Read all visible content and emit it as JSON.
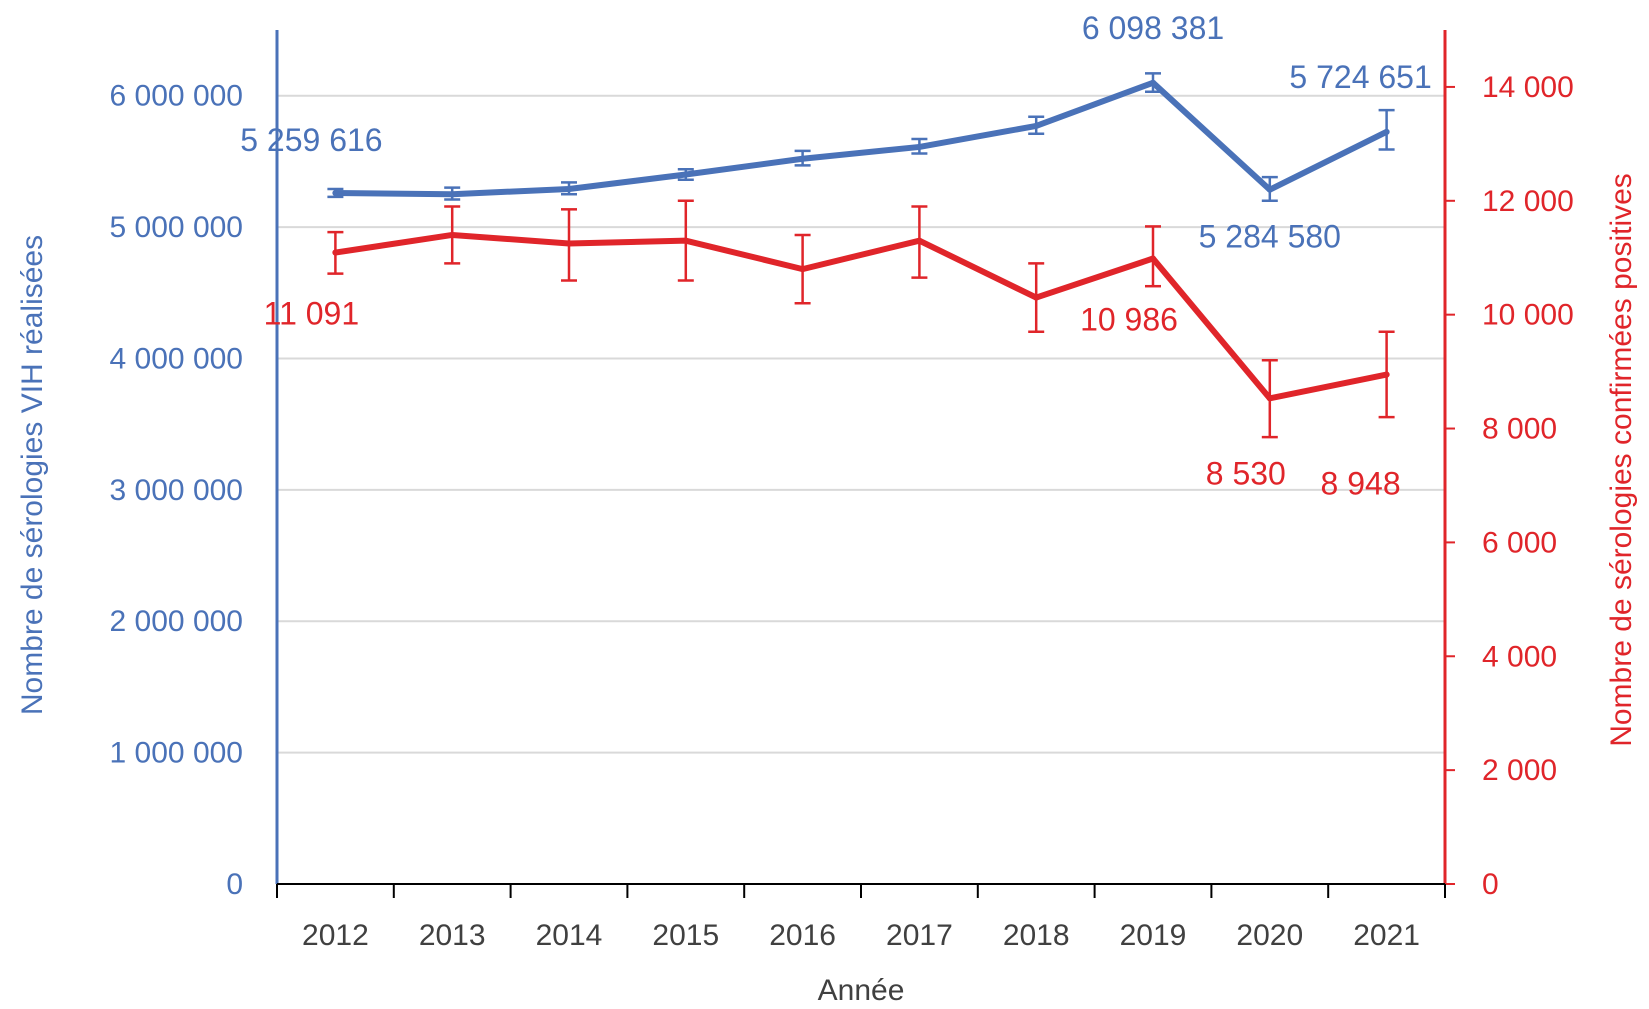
{
  "chart_data": {
    "type": "line",
    "title": "",
    "xlabel": "Année",
    "ylabel_left": "Nombre de sérologies VIH réalisées",
    "ylabel_right": "Nombre de sérologies confirmées positives",
    "categories": [
      "2012",
      "2013",
      "2014",
      "2015",
      "2016",
      "2017",
      "2018",
      "2019",
      "2020",
      "2021"
    ],
    "y_left": {
      "range": [
        0,
        6500000
      ],
      "ticks": [
        0,
        1000000,
        2000000,
        3000000,
        4000000,
        5000000,
        6000000
      ],
      "tick_labels": [
        "0",
        "1 000 000",
        "2 000 000",
        "3 000 000",
        "4 000 000",
        "5 000 000",
        "6 000 000"
      ],
      "color": "#4a72b8"
    },
    "y_right": {
      "range": [
        0,
        15000
      ],
      "ticks": [
        0,
        2000,
        4000,
        6000,
        8000,
        10000,
        12000,
        14000
      ],
      "tick_labels": [
        "0",
        "2 000",
        "4 000",
        "6 000",
        "8 000",
        "10 000",
        "12 000",
        "14 000"
      ],
      "color": "#e0252a"
    },
    "grid": true,
    "series": [
      {
        "axis": "left",
        "color": "#4a72b8",
        "values": [
          5259616,
          5250000,
          5290000,
          5400000,
          5520000,
          5610000,
          5770000,
          6098381,
          5284580,
          5724651
        ],
        "err_low": [
          5230000,
          5210000,
          5250000,
          5360000,
          5470000,
          5560000,
          5710000,
          6030000,
          5200000,
          5590000
        ],
        "err_high": [
          5290000,
          5300000,
          5340000,
          5440000,
          5580000,
          5670000,
          5840000,
          6170000,
          5380000,
          5890000
        ],
        "point_labels": [
          "5 259 616",
          "",
          "",
          "",
          "",
          "",
          "",
          "6 098 381",
          "5 284 580",
          "5 724 651"
        ]
      },
      {
        "axis": "right",
        "color": "#e0252a",
        "values": [
          11091,
          11400,
          11250,
          11300,
          10800,
          11300,
          10300,
          10986,
          8530,
          8948
        ],
        "err_low": [
          10720,
          10900,
          10600,
          10600,
          10200,
          10650,
          9700,
          10500,
          7850,
          8200
        ],
        "err_high": [
          11450,
          11900,
          11850,
          12000,
          11400,
          11900,
          10900,
          11550,
          9200,
          9700
        ],
        "point_labels": [
          "11 091",
          "",
          "",
          "",
          "",
          "",
          "",
          "10 986",
          "8 530",
          "8 948"
        ]
      }
    ]
  }
}
